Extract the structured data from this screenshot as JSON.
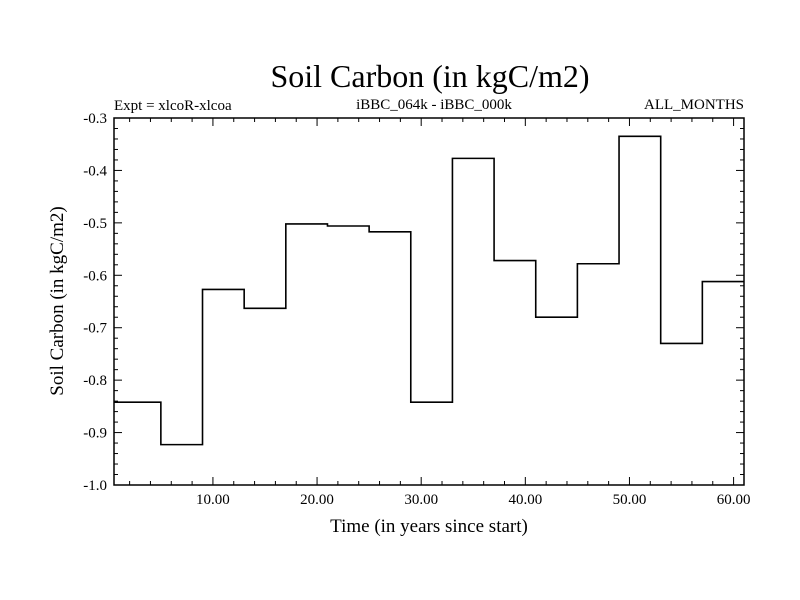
{
  "chart_data": {
    "type": "line",
    "step": true,
    "title": "Soil Carbon (in kgC/m2)",
    "subtitle_left": "Expt = xlcoR-xlcoa",
    "subtitle_center": "iBBC_064k - iBBC_000k",
    "subtitle_right": "ALL_MONTHS",
    "xlabel": "Time (in years since start)",
    "ylabel": "Soil Carbon (in kgC/m2)",
    "xlim": [
      0.5,
      61
    ],
    "ylim": [
      -1.0,
      -0.3
    ],
    "x_ticks": [
      10,
      20,
      30,
      40,
      50,
      60
    ],
    "x_tick_labels": [
      "10.00",
      "20.00",
      "30.00",
      "40.00",
      "50.00",
      "60.00"
    ],
    "y_ticks": [
      -1.0,
      -0.9,
      -0.8,
      -0.7,
      -0.6,
      -0.5,
      -0.4,
      -0.3
    ],
    "y_tick_labels": [
      "-1.0",
      "-0.9",
      "-0.8",
      "-0.7",
      "-0.6",
      "-0.5",
      "-0.4",
      "-0.3"
    ],
    "grid": false,
    "series": [
      {
        "x": [
          0.5,
          5,
          9,
          13,
          17,
          21,
          25,
          29,
          33,
          37,
          41,
          45,
          49,
          53,
          57,
          61
        ],
        "y": [
          -0.842,
          -0.923,
          -0.627,
          -0.663,
          -0.502,
          -0.506,
          -0.517,
          -0.842,
          -0.377,
          -0.572,
          -0.68,
          -0.578,
          -0.335,
          -0.73,
          -0.612,
          -0.612
        ],
        "color": "#000000"
      }
    ]
  }
}
